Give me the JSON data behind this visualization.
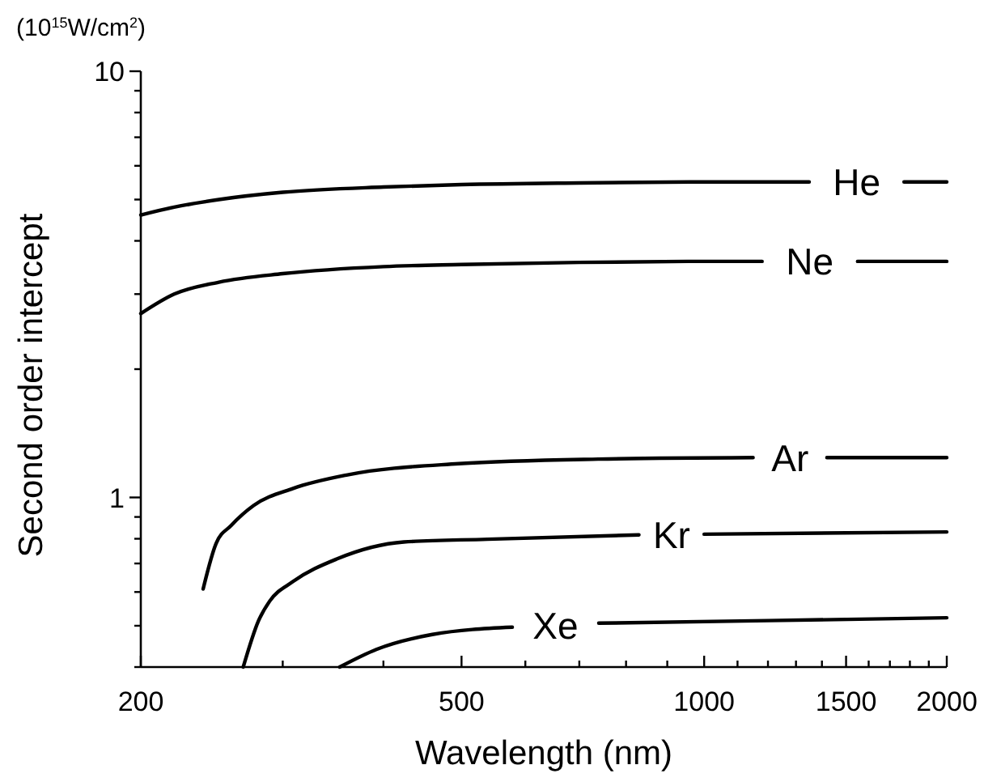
{
  "chart_data": {
    "type": "line",
    "xlabel": "Wavelength (nm)",
    "ylabel": "Second order intercept",
    "annotations": [
      "(10$^{15}$W/cm$^{2}$)"
    ],
    "log": "xy",
    "grid": false,
    "marker": "none",
    "line_style": "solid",
    "xlim": [
      200,
      2000
    ],
    "ylim": [
      0.4,
      10
    ],
    "xticks": [
      200,
      {
        "value": 300,
        "label": null
      },
      {
        "value": 400,
        "label": null
      },
      500,
      {
        "value": 600,
        "label": null
      },
      {
        "value": 700,
        "label": null
      },
      {
        "value": 800,
        "label": null
      },
      {
        "value": 900,
        "label": null
      },
      1000,
      {
        "value": 1100,
        "label": null
      },
      {
        "value": 1200,
        "label": null
      },
      {
        "value": 1300,
        "label": null
      },
      {
        "value": 1400,
        "label": null
      },
      1500,
      {
        "value": 1600,
        "label": null
      },
      {
        "value": 1700,
        "label": null
      },
      {
        "value": 1800,
        "label": null
      },
      {
        "value": 1900,
        "label": null
      },
      2000
    ],
    "yticks": [
      {
        "value": 0.4,
        "label": null
      },
      {
        "value": 0.5,
        "label": null
      },
      {
        "value": 0.6,
        "label": null
      },
      {
        "value": 0.7,
        "label": null
      },
      {
        "value": 0.8,
        "label": null
      },
      {
        "value": 0.9,
        "label": null
      },
      1,
      {
        "value": 2,
        "label": null
      },
      {
        "value": 3,
        "label": null
      },
      {
        "value": 4,
        "label": null
      },
      {
        "value": 5,
        "label": null
      },
      {
        "value": 6,
        "label": null
      },
      {
        "value": 7,
        "label": null
      },
      {
        "value": 8,
        "label": null
      },
      {
        "value": 9,
        "label": null
      },
      10
    ],
    "series": [
      {
        "name": "He",
        "color": "#000000",
        "x": [
          200,
          220,
          250,
          300,
          400,
          500,
          700,
          1000,
          1350,
          1550,
          1770,
          2000
        ],
        "values": [
          4.6,
          4.8,
          5.0,
          5.2,
          5.35,
          5.42,
          5.47,
          5.5,
          5.5,
          null,
          5.5,
          5.5
        ]
      },
      {
        "name": "Ne",
        "color": "#000000",
        "x": [
          200,
          220,
          250,
          300,
          400,
          500,
          700,
          1000,
          1180,
          1350,
          1550,
          2000
        ],
        "values": [
          2.7,
          3.0,
          3.2,
          3.35,
          3.48,
          3.52,
          3.56,
          3.58,
          3.58,
          null,
          3.58,
          3.58
        ]
      },
      {
        "name": "Ar",
        "color": "#000000",
        "x": [
          239,
          248,
          259,
          276,
          309,
          361,
          496,
          739,
          1150,
          1280,
          1420,
          2000
        ],
        "values": [
          0.61,
          0.78,
          0.86,
          0.957,
          1.05,
          1.13,
          1.2,
          1.23,
          1.24,
          null,
          1.24,
          1.24
        ]
      },
      {
        "name": "Kr",
        "color": "#000000",
        "x": [
          268,
          280,
          289,
          309,
          350,
          424,
          538,
          830,
          910,
          1000,
          2000
        ],
        "values": [
          0.4,
          0.514,
          0.571,
          0.635,
          0.717,
          0.786,
          0.798,
          0.817,
          null,
          0.82,
          0.83
        ]
      },
      {
        "name": "Xe",
        "color": "#000000",
        "x": [
          353,
          392,
          460,
          578,
          660,
          740,
          1200,
          2000
        ],
        "values": [
          0.4,
          0.44,
          0.477,
          0.496,
          null,
          0.507,
          0.514,
          0.522
        ]
      }
    ]
  }
}
